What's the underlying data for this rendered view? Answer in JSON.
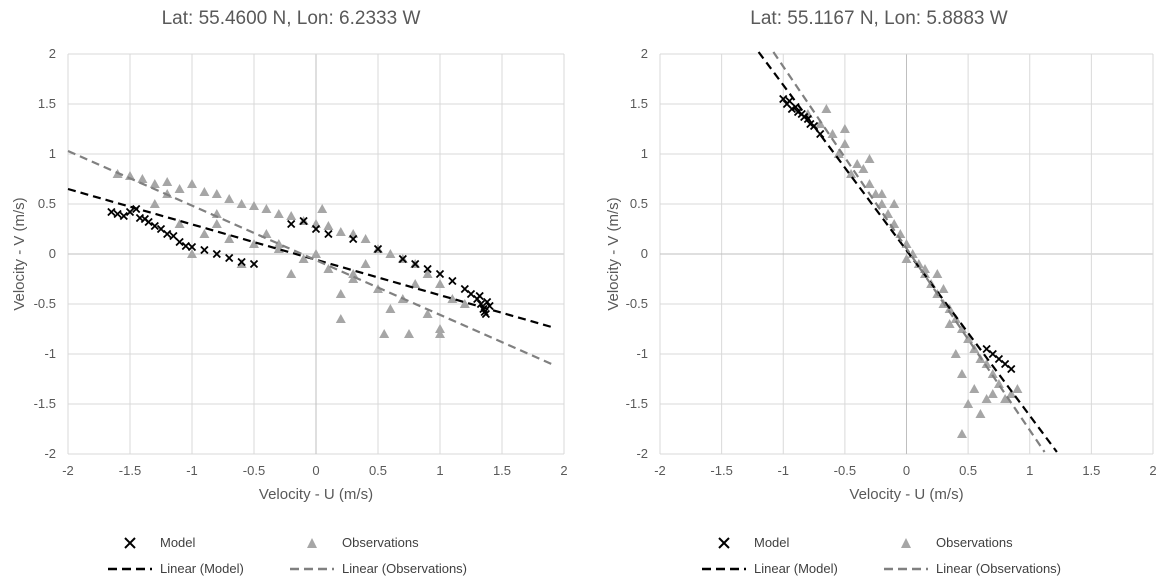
{
  "chart_data": [
    {
      "type": "scatter",
      "title": "Lat: 55.4600 N, Lon: 6.2333 W",
      "xlabel": "Velocity - U (m/s)",
      "ylabel": "Velocity - V (m/s)",
      "xlim": [
        -2,
        2
      ],
      "ylim": [
        -2,
        2
      ],
      "xticks": [
        "-2",
        "-1.5",
        "-1",
        "-0.5",
        "0",
        "0.5",
        "1",
        "1.5",
        "2"
      ],
      "yticks": [
        "2",
        "1.5",
        "1",
        "0.5",
        "0",
        "-0.5",
        "-1",
        "-1.5",
        "-2"
      ],
      "grid": true,
      "legend_position": "bottom",
      "legend": {
        "model": "Model",
        "observations": "Observations",
        "linear_model": "Linear (Model)",
        "linear_observations": "Linear (Observations)"
      },
      "series": [
        {
          "name": "Model",
          "marker": "x",
          "color": "#000000",
          "x": [
            -1.65,
            -1.6,
            -1.55,
            -1.5,
            -1.45,
            -1.42,
            -1.38,
            -1.35,
            -1.3,
            -1.25,
            -1.2,
            -1.15,
            -1.1,
            -1.05,
            -1.0,
            -0.9,
            -0.8,
            -0.7,
            -0.6,
            -0.5,
            -0.2,
            -0.1,
            0.0,
            0.1,
            0.3,
            0.5,
            0.7,
            0.8,
            0.9,
            1.0,
            1.1,
            1.2,
            1.25,
            1.3,
            1.33,
            1.35,
            1.37,
            1.4,
            1.32,
            1.38,
            1.36
          ],
          "y": [
            0.42,
            0.4,
            0.38,
            0.42,
            0.45,
            0.36,
            0.35,
            0.32,
            0.28,
            0.25,
            0.2,
            0.18,
            0.12,
            0.08,
            0.07,
            0.04,
            0.0,
            -0.04,
            -0.08,
            -0.1,
            0.3,
            0.33,
            0.25,
            0.2,
            0.15,
            0.05,
            -0.05,
            -0.1,
            -0.15,
            -0.2,
            -0.27,
            -0.35,
            -0.4,
            -0.45,
            -0.5,
            -0.55,
            -0.6,
            -0.52,
            -0.42,
            -0.48,
            -0.58
          ]
        },
        {
          "name": "Observations",
          "marker": "triangle",
          "color": "#a6a6a6",
          "x": [
            -1.6,
            -1.5,
            -1.4,
            -1.3,
            -1.2,
            -1.1,
            -1.0,
            -0.9,
            -0.8,
            -0.7,
            -0.6,
            -0.5,
            -0.4,
            -0.3,
            -0.2,
            -0.1,
            0.0,
            0.1,
            0.2,
            0.3,
            0.4,
            0.5,
            0.6,
            0.7,
            0.8,
            0.9,
            1.0,
            1.1,
            -1.3,
            -1.1,
            -0.9,
            -0.7,
            -0.5,
            -0.3,
            -0.1,
            0.1,
            0.3,
            0.5,
            0.7,
            0.9,
            1.0,
            -1.2,
            -0.8,
            -0.4,
            0.0,
            0.4,
            0.8,
            1.2,
            -1.0,
            -0.6,
            -0.2,
            0.2,
            0.6,
            1.0,
            -0.8,
            -0.3,
            0.3,
            0.75,
            0.2,
            0.55,
            0.05
          ],
          "y": [
            0.8,
            0.78,
            0.75,
            0.7,
            0.72,
            0.65,
            0.7,
            0.62,
            0.6,
            0.55,
            0.5,
            0.48,
            0.45,
            0.4,
            0.38,
            0.33,
            0.3,
            0.28,
            0.22,
            0.2,
            0.15,
            0.05,
            0.0,
            -0.05,
            -0.1,
            -0.2,
            -0.3,
            -0.45,
            0.5,
            0.3,
            0.2,
            0.15,
            0.1,
            0.05,
            -0.05,
            -0.15,
            -0.25,
            -0.35,
            -0.45,
            -0.6,
            -0.75,
            0.6,
            0.4,
            0.2,
            0.0,
            -0.1,
            -0.3,
            -0.5,
            0.0,
            -0.1,
            -0.2,
            -0.4,
            -0.55,
            -0.8,
            0.3,
            0.1,
            -0.2,
            -0.8,
            -0.65,
            -0.8,
            0.45
          ]
        }
      ],
      "trendlines": [
        {
          "name": "Linear (Model)",
          "color": "#000000",
          "x": [
            -2,
            1.9
          ],
          "y": [
            0.65,
            -0.73
          ]
        },
        {
          "name": "Linear (Observations)",
          "color": "#808080",
          "x": [
            -2,
            1.9
          ],
          "y": [
            1.03,
            -1.1
          ]
        }
      ]
    },
    {
      "type": "scatter",
      "title": "Lat: 55.1167 N, Lon: 5.8883 W",
      "xlabel": "Velocity - U (m/s)",
      "ylabel": "Velocity - V (m/s)",
      "xlim": [
        -2,
        2
      ],
      "ylim": [
        -2,
        2
      ],
      "xticks": [
        "-2",
        "-1.5",
        "-1",
        "-0.5",
        "0",
        "0.5",
        "1",
        "1.5",
        "2"
      ],
      "yticks": [
        "2",
        "1.5",
        "1",
        "0.5",
        "0",
        "-0.5",
        "-1",
        "-1.5",
        "-2"
      ],
      "grid": true,
      "legend_position": "bottom",
      "legend": {
        "model": "Model",
        "observations": "Observations",
        "linear_model": "Linear (Model)",
        "linear_observations": "Linear (Observations)"
      },
      "series": [
        {
          "name": "Model",
          "marker": "x",
          "color": "#000000",
          "x": [
            -1.0,
            -0.97,
            -0.95,
            -0.93,
            -0.9,
            -0.88,
            -0.85,
            -0.83,
            -0.8,
            -0.78,
            -0.75,
            -0.7,
            0.65,
            0.7,
            0.75,
            0.8,
            0.85
          ],
          "y": [
            1.55,
            1.5,
            1.53,
            1.45,
            1.47,
            1.42,
            1.4,
            1.37,
            1.35,
            1.3,
            1.28,
            1.2,
            -0.95,
            -1.0,
            -1.05,
            -1.1,
            -1.15
          ]
        },
        {
          "name": "Observations",
          "marker": "triangle",
          "color": "#a6a6a6",
          "x": [
            -0.8,
            -0.7,
            -0.6,
            -0.5,
            -0.4,
            -0.35,
            -0.3,
            -0.25,
            -0.2,
            -0.15,
            -0.1,
            -0.05,
            0.0,
            0.05,
            0.1,
            0.15,
            0.2,
            0.25,
            0.3,
            0.35,
            0.4,
            0.45,
            0.5,
            0.55,
            0.6,
            0.65,
            0.7,
            0.75,
            0.8,
            0.9,
            -0.55,
            -0.45,
            -0.3,
            -0.2,
            -0.1,
            0.0,
            0.15,
            0.25,
            0.35,
            0.45,
            0.55,
            0.65,
            0.4,
            0.5,
            0.6,
            0.7,
            -0.65,
            -0.5,
            0.3,
            0.45,
            0.85
          ],
          "y": [
            1.4,
            1.3,
            1.2,
            1.1,
            0.9,
            0.85,
            0.7,
            0.6,
            0.5,
            0.4,
            0.3,
            0.2,
            0.1,
            0.0,
            -0.1,
            -0.2,
            -0.3,
            -0.4,
            -0.5,
            -0.55,
            -0.65,
            -0.75,
            -0.85,
            -0.95,
            -1.05,
            -1.1,
            -1.2,
            -1.3,
            -1.45,
            -1.35,
            1.0,
            0.8,
            0.95,
            0.6,
            0.5,
            -0.05,
            -0.15,
            -0.2,
            -0.7,
            -1.2,
            -1.35,
            -1.45,
            -1.0,
            -1.5,
            -1.6,
            -1.4,
            1.45,
            1.25,
            -0.35,
            -1.8,
            -1.4
          ]
        }
      ],
      "trendlines": [
        {
          "name": "Linear (Model)",
          "color": "#000000",
          "x": [
            -1.2,
            1.22
          ],
          "y": [
            2.02,
            -1.98
          ]
        },
        {
          "name": "Linear (Observations)",
          "color": "#808080",
          "x": [
            -1.08,
            1.12
          ],
          "y": [
            2.02,
            -1.98
          ]
        }
      ]
    }
  ]
}
